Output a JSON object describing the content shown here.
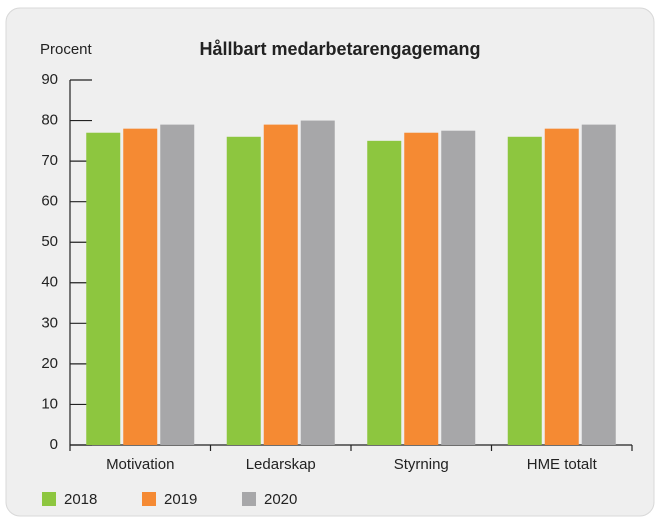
{
  "chart_data": {
    "type": "bar",
    "title": "Hållbart medarbetarengagemang",
    "y_label": "Procent",
    "categories": [
      "Motivation",
      "Ledarskap",
      "Styrning",
      "HME totalt"
    ],
    "series": [
      {
        "name": "2018",
        "color": "#8dc63f",
        "values": [
          77,
          76,
          75,
          76
        ]
      },
      {
        "name": "2019",
        "color": "#f58a33",
        "values": [
          78,
          79,
          77,
          78
        ]
      },
      {
        "name": "2020",
        "color": "#a7a7a9",
        "values": [
          79,
          80,
          77.5,
          79
        ]
      }
    ],
    "ylim": [
      0,
      90
    ],
    "yticks": [
      0,
      10,
      20,
      30,
      40,
      50,
      60,
      70,
      80,
      90
    ],
    "grid": false,
    "legend": "bottom"
  }
}
